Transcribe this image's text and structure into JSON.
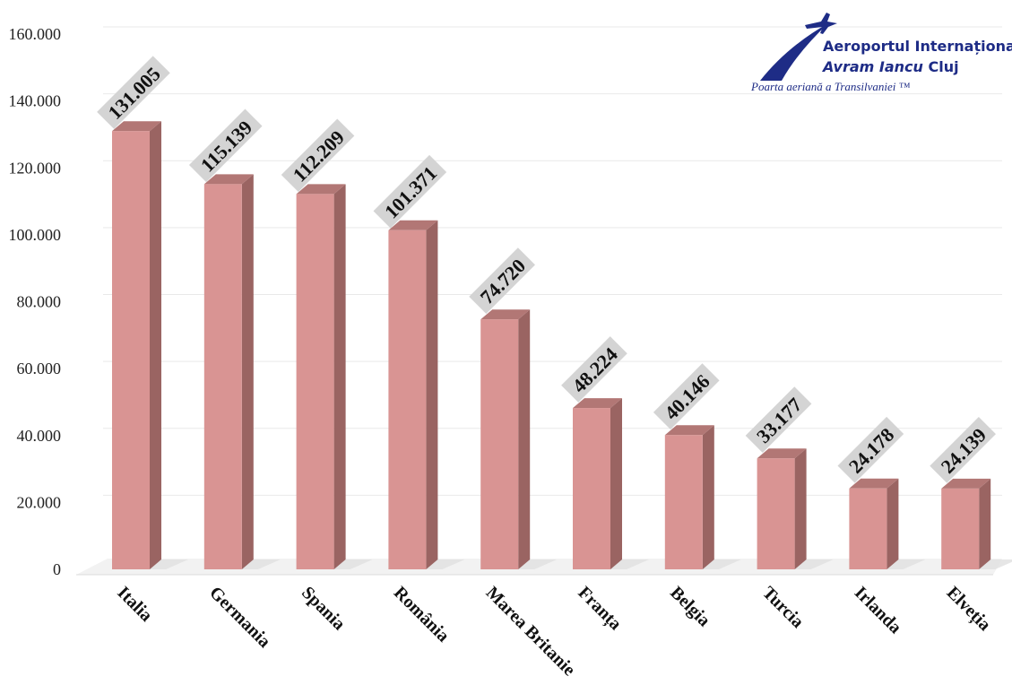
{
  "chart_data": {
    "type": "bar",
    "categories": [
      "Italia",
      "Germania",
      "Spania",
      "România",
      "Marea Britanie",
      "Franța",
      "Belgia",
      "Turcia",
      "Irlanda",
      "Elveția"
    ],
    "values": [
      131005,
      115139,
      112209,
      101371,
      74720,
      48224,
      40146,
      33177,
      24178,
      24139
    ],
    "data_labels": [
      "131.005",
      "115.139",
      "112.209",
      "101.371",
      "74.720",
      "48.224",
      "40.146",
      "33.177",
      "24.178",
      "24.139"
    ],
    "y_ticks": [
      0,
      20000,
      40000,
      60000,
      80000,
      100000,
      120000,
      140000,
      160000
    ],
    "y_tick_labels": [
      "0",
      "20.000",
      "40.000",
      "60.000",
      "80.000",
      "100.000",
      "120.000",
      "140.000",
      "160.000"
    ],
    "ylim": [
      0,
      160000
    ],
    "title": "",
    "xlabel": "",
    "ylabel": "",
    "grid": true,
    "bar_color": "#d99493",
    "bar_side_color": "#9a6462",
    "bar_top_color": "#b27775"
  },
  "logo": {
    "line1": "Aeroportul Internațional",
    "line2_italic": "Avram Iancu",
    "line2_rest": " Cluj",
    "tagline": "Poarta aeriană a Transilvaniei ™",
    "color": "#1e2c86"
  }
}
